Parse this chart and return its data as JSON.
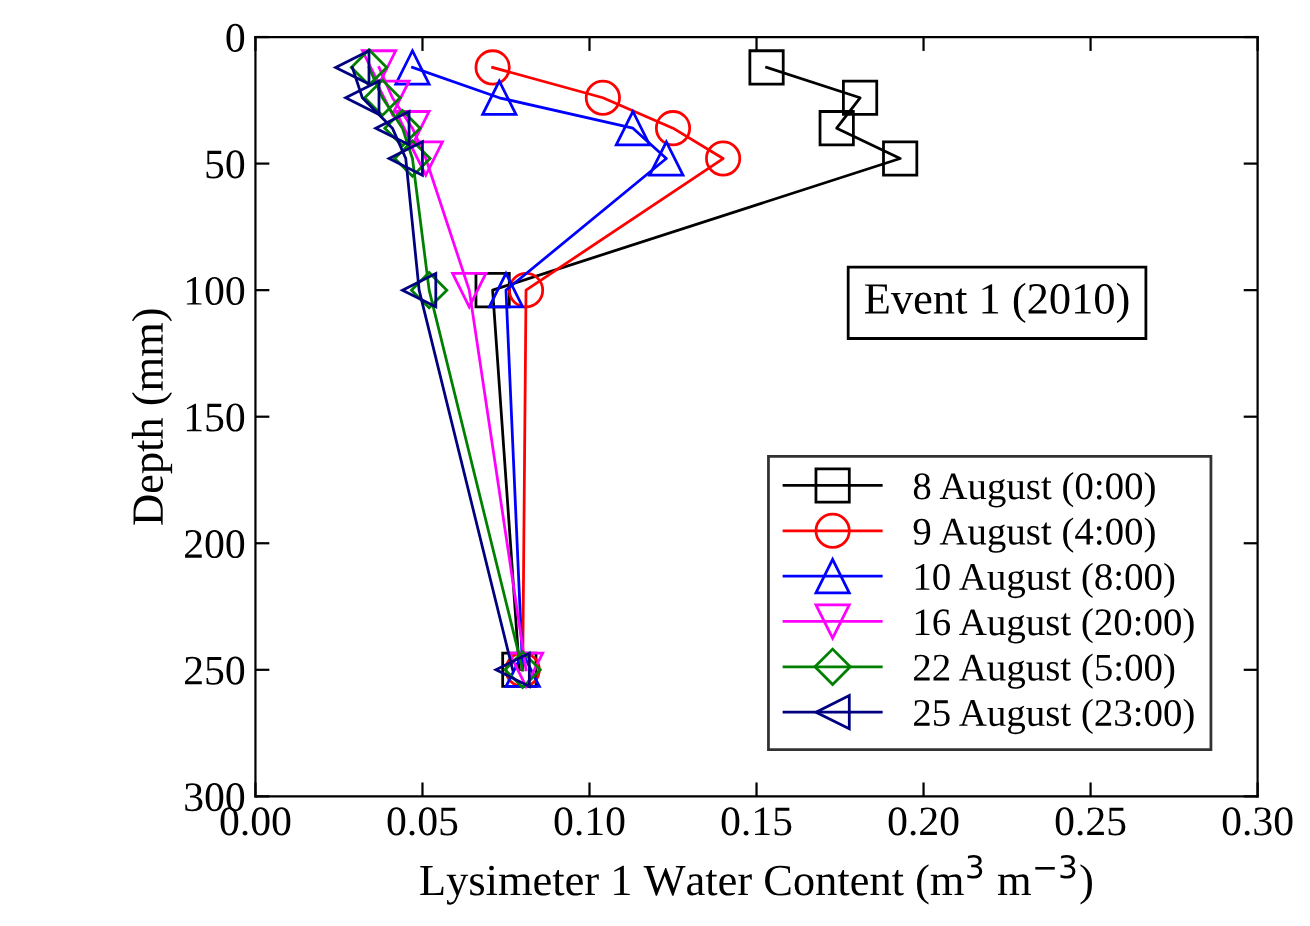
{
  "chart_data": {
    "type": "line",
    "xlabel": "Lysimeter 1 Water Content (m$^{3}$ m$^{−3}$)",
    "ylabel": "Depth (mm)",
    "annotations": [
      "Event 1 (2010)"
    ],
    "xlim": [
      0,
      0.3
    ],
    "xticks": [
      {
        "value": 0,
        "label": "0.00"
      },
      {
        "value": 0.05,
        "label": "0.05"
      },
      {
        "value": 0.1,
        "label": "0.10"
      },
      {
        "value": 0.15,
        "label": "0.15"
      },
      {
        "value": 0.2,
        "label": "0.20"
      },
      {
        "value": 0.25,
        "label": "0.25"
      },
      {
        "value": 0.3,
        "label": "0.30"
      }
    ],
    "ylim": [
      300,
      0
    ],
    "yticks": [
      0,
      50,
      100,
      150,
      200,
      250,
      300
    ],
    "grid": false,
    "legend": "bottom right",
    "line_style": "solid",
    "series": [
      {
        "name": "8 August (0:00)",
        "color": "#000000",
        "marker": "square",
        "x": [
          0.153,
          0.181,
          0.174,
          0.193,
          0.071,
          0.079
        ],
        "values": [
          12,
          24,
          36,
          48,
          100,
          250
        ]
      },
      {
        "name": "9 August (4:00)",
        "color": "#ff0000",
        "marker": "circle",
        "x": [
          0.071,
          0.104,
          0.125,
          0.14,
          0.081,
          0.08
        ],
        "values": [
          12,
          24,
          36,
          48,
          100,
          250
        ]
      },
      {
        "name": "10 August (8:00)",
        "color": "#0000ff",
        "marker": "triangle",
        "x": [
          0.047,
          0.073,
          0.113,
          0.123,
          0.075,
          0.08
        ],
        "values": [
          12,
          24,
          36,
          48,
          100,
          250
        ]
      },
      {
        "name": "16 August (20:00)",
        "color": "#ff00ff",
        "marker": "triangle_down",
        "x": [
          0.037,
          0.041,
          0.047,
          0.051,
          0.064,
          0.081
        ],
        "values": [
          12,
          24,
          36,
          48,
          100,
          250
        ]
      },
      {
        "name": "22 August (5:00)",
        "color": "#008000",
        "marker": "diamond",
        "x": [
          0.034,
          0.038,
          0.044,
          0.047,
          0.052,
          0.08
        ],
        "values": [
          12,
          24,
          36,
          48,
          100,
          250
        ]
      },
      {
        "name": "25 August (23:00)",
        "color": "#000080",
        "marker": "triangle_left",
        "x": [
          0.029,
          0.032,
          0.041,
          0.045,
          0.049,
          0.077
        ],
        "values": [
          12,
          24,
          36,
          48,
          100,
          250
        ]
      }
    ]
  }
}
